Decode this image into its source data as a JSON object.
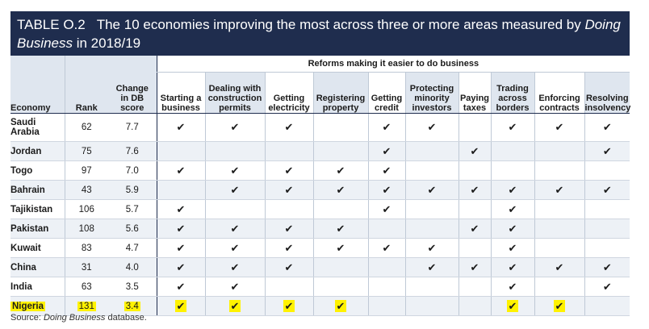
{
  "title": {
    "label": "TABLE O.2",
    "text_before": "The 10 economies improving the most across three or more areas measured by ",
    "text_italic": "Doing Business",
    "text_after": " in 2018/19"
  },
  "reforms_header": "Reforms making it easier to do business",
  "columns": {
    "economy": "Economy",
    "rank": "Rank",
    "change": [
      "Change",
      "in DB",
      "score"
    ],
    "reforms": [
      [
        "Starting a",
        "business"
      ],
      [
        "Dealing with",
        "construction",
        "permits"
      ],
      [
        "Getting",
        "electricity"
      ],
      [
        "Registering",
        "property"
      ],
      [
        "Getting",
        "credit"
      ],
      [
        "Protecting",
        "minority",
        "investors"
      ],
      [
        "Paying",
        "taxes"
      ],
      [
        "Trading",
        "across",
        "borders"
      ],
      [
        "Enforcing",
        "contracts"
      ],
      [
        "Resolving",
        "insolvency"
      ]
    ]
  },
  "check_glyph": "✔",
  "rows": [
    {
      "economy": [
        "Saudi",
        "Arabia"
      ],
      "rank": "62",
      "change": "7.7",
      "reforms": [
        1,
        1,
        1,
        0,
        1,
        1,
        0,
        1,
        1,
        1
      ],
      "highlight": false
    },
    {
      "economy": [
        "Jordan"
      ],
      "rank": "75",
      "change": "7.6",
      "reforms": [
        0,
        0,
        0,
        0,
        1,
        0,
        1,
        0,
        0,
        1
      ],
      "highlight": false
    },
    {
      "economy": [
        "Togo"
      ],
      "rank": "97",
      "change": "7.0",
      "reforms": [
        1,
        1,
        1,
        1,
        1,
        0,
        0,
        0,
        0,
        0
      ],
      "highlight": false
    },
    {
      "economy": [
        "Bahrain"
      ],
      "rank": "43",
      "change": "5.9",
      "reforms": [
        0,
        1,
        1,
        1,
        1,
        1,
        1,
        1,
        1,
        1
      ],
      "highlight": false
    },
    {
      "economy": [
        "Tajikistan"
      ],
      "rank": "106",
      "change": "5.7",
      "reforms": [
        1,
        0,
        0,
        0,
        1,
        0,
        0,
        1,
        0,
        0
      ],
      "highlight": false
    },
    {
      "economy": [
        "Pakistan"
      ],
      "rank": "108",
      "change": "5.6",
      "reforms": [
        1,
        1,
        1,
        1,
        0,
        0,
        1,
        1,
        0,
        0
      ],
      "highlight": false
    },
    {
      "economy": [
        "Kuwait"
      ],
      "rank": "83",
      "change": "4.7",
      "reforms": [
        1,
        1,
        1,
        1,
        1,
        1,
        0,
        1,
        0,
        0
      ],
      "highlight": false
    },
    {
      "economy": [
        "China"
      ],
      "rank": "31",
      "change": "4.0",
      "reforms": [
        1,
        1,
        1,
        0,
        0,
        1,
        1,
        1,
        1,
        1
      ],
      "highlight": false
    },
    {
      "economy": [
        "India"
      ],
      "rank": "63",
      "change": "3.5",
      "reforms": [
        1,
        1,
        0,
        0,
        0,
        0,
        0,
        1,
        0,
        1
      ],
      "highlight": false
    },
    {
      "economy": [
        "Nigeria"
      ],
      "rank": "131",
      "change": "3.4",
      "reforms": [
        1,
        1,
        1,
        1,
        0,
        0,
        0,
        1,
        1,
        0
      ],
      "highlight": true
    }
  ],
  "source": {
    "prefix": "Source: ",
    "italic": "Doing Business",
    "suffix": " database."
  },
  "colors": {
    "title_bg": "#1f2d4e",
    "header_blue": "#dfe6ef",
    "row_shade": "#edf1f6",
    "highlight": "#fff200"
  }
}
